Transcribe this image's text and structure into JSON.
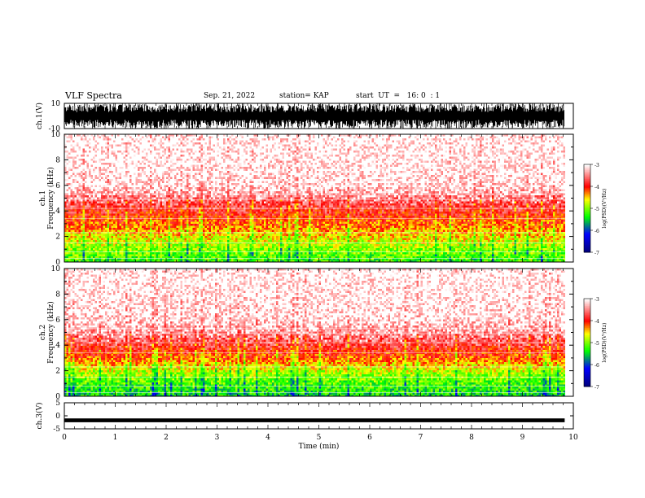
{
  "header": {
    "title": "VLF Spectra",
    "date": "Sep. 21, 2022",
    "station": "station= KAP",
    "start": "start  UT  =   16: 0  : 1"
  },
  "colorbar": {
    "label": "log(PSD)(V²/Hz)",
    "ticks": [
      "-3",
      "-4",
      "-5",
      "-6",
      "-7"
    ],
    "colors": [
      "#ffffff",
      "#ff0000",
      "#ffff00",
      "#00ff00",
      "#0000ff",
      "#000080"
    ]
  },
  "chart_data": [
    {
      "type": "line",
      "panel": "ch1-waveform",
      "ylabel": "ch.1(V)",
      "ylim": [
        -10,
        10
      ],
      "yticks": [
        "10",
        "-10"
      ],
      "xlim": [
        0,
        10
      ],
      "description_values": {
        "envelope_min": -10,
        "envelope_max": 10
      }
    },
    {
      "type": "heatmap",
      "panel": "ch1-spectrogram",
      "ylabel": "ch.1\nFrequency  (kHz)",
      "ylabel_line1": "ch.1",
      "ylabel_line2": "Frequency  (kHz)",
      "ylim": [
        0,
        10
      ],
      "yticks": [
        "0",
        "2",
        "4",
        "6",
        "8",
        "10"
      ],
      "xlim": [
        0,
        10
      ],
      "zlim": [
        -7,
        -3
      ],
      "data_end_min": 9.83,
      "band_profile_khz": [
        0,
        1,
        2,
        3,
        4,
        5,
        6,
        8,
        10
      ],
      "band_profile_logpsd": [
        -5.3,
        -5.0,
        -4.6,
        -4.2,
        -3.9,
        -3.5,
        -3.1,
        -3.0,
        -3.0
      ]
    },
    {
      "type": "heatmap",
      "panel": "ch2-spectrogram",
      "ylabel_line1": "ch.2",
      "ylabel_line2": "Frequency  (kHz)",
      "ylim": [
        0,
        10
      ],
      "yticks": [
        "0",
        "2",
        "4",
        "6",
        "8",
        "10"
      ],
      "xlim": [
        0,
        10
      ],
      "zlim": [
        -7,
        -3
      ],
      "data_end_min": 9.83,
      "band_profile_khz": [
        0,
        1,
        2,
        3,
        4,
        5,
        6,
        8,
        10
      ],
      "band_profile_logpsd": [
        -5.5,
        -5.2,
        -4.8,
        -4.2,
        -3.8,
        -3.4,
        -3.1,
        -3.0,
        -3.0
      ]
    },
    {
      "type": "line",
      "panel": "ch3-waveform",
      "ylabel": "ch.3(V)",
      "ylim": [
        -5,
        5
      ],
      "yticks": [
        "5",
        "0",
        "-5"
      ],
      "xlim": [
        0,
        10
      ],
      "description_values": {
        "envelope_min": -2,
        "envelope_max": -1
      }
    }
  ],
  "xaxis": {
    "label": "Time  (min)",
    "ticks": [
      "0",
      "1",
      "2",
      "3",
      "4",
      "5",
      "6",
      "7",
      "8",
      "9",
      "10"
    ]
  }
}
